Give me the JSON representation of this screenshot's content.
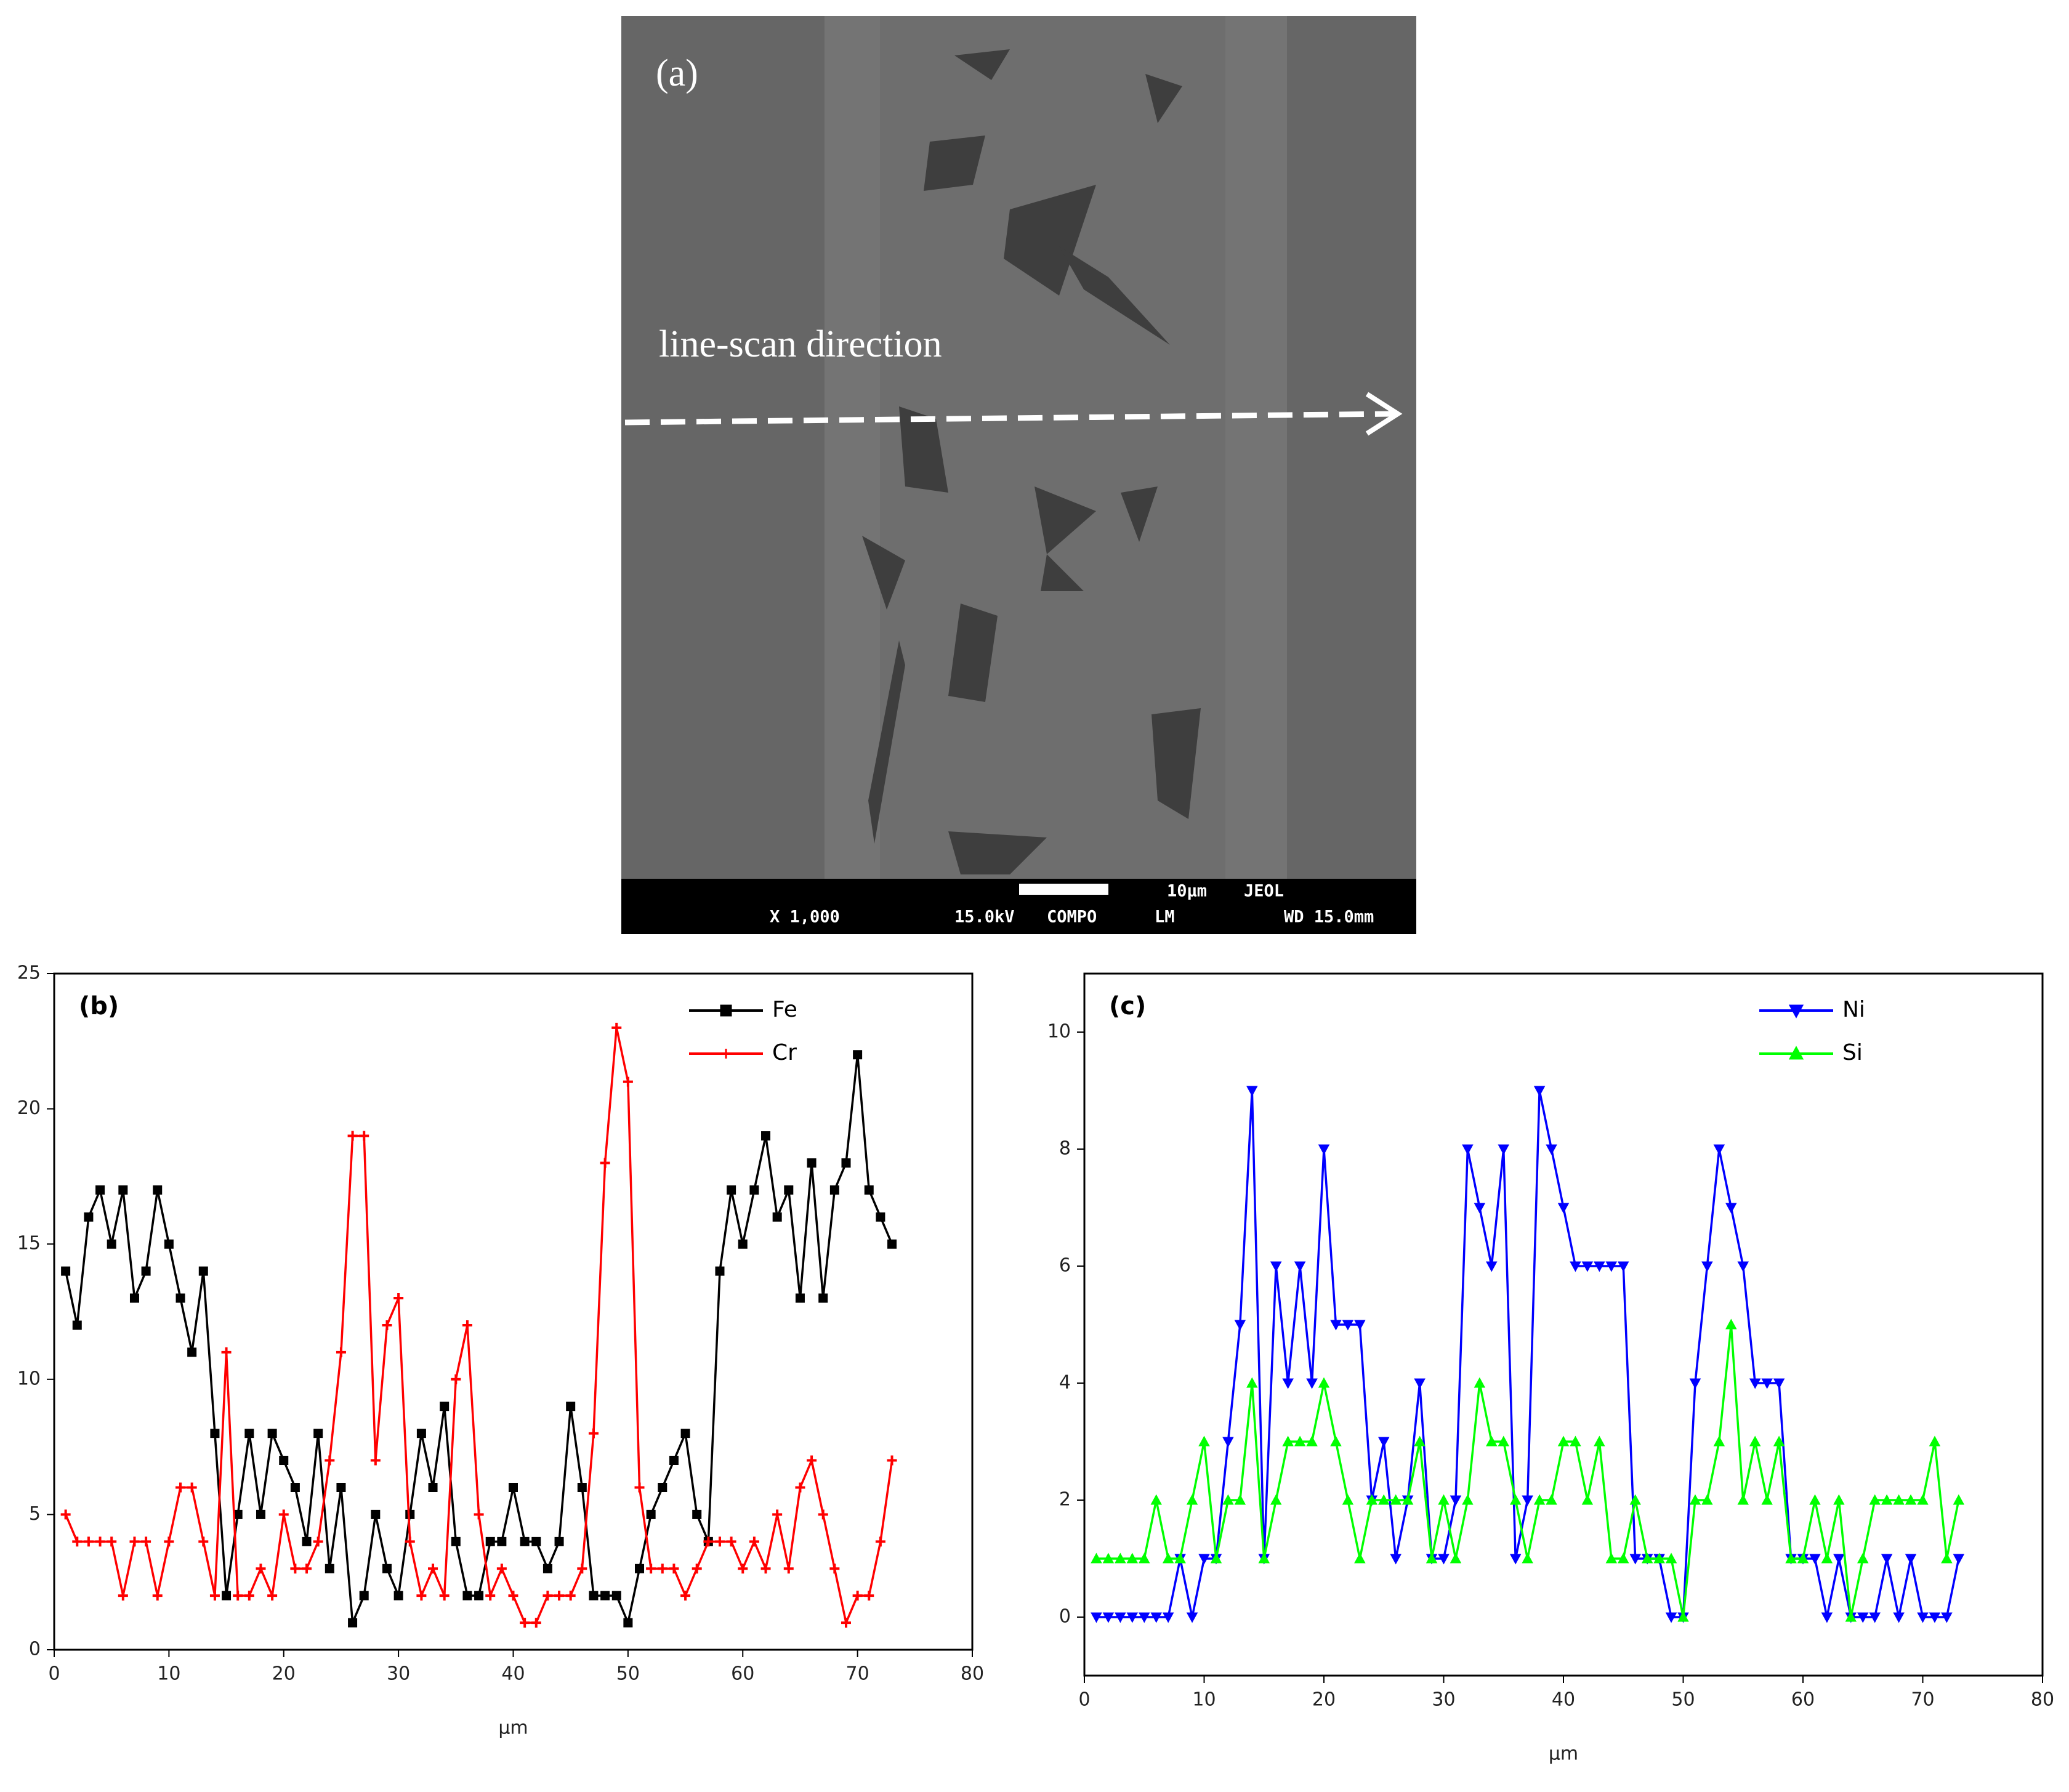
{
  "image": {
    "panel_label": "(a)",
    "annotation": "line-scan direction",
    "scale_bar": "10µm",
    "brand": "JEOL",
    "magnification": "X 1,000",
    "voltage": "15.0kV",
    "mode": "COMPO",
    "detector": "LM",
    "working_distance": "WD 15.0mm"
  },
  "chart_data": [
    {
      "type": "line",
      "panel_label": "(b)",
      "x_label": "µm",
      "xlim": [
        0,
        80
      ],
      "xticks": [
        0,
        10,
        20,
        30,
        40,
        50,
        60,
        70,
        80
      ],
      "ylim": [
        0,
        25
      ],
      "yticks": [
        0,
        5,
        10,
        15,
        20,
        25
      ],
      "legend": "upper right",
      "x": [
        1,
        2,
        3,
        4,
        5,
        6,
        7,
        8,
        9,
        10,
        11,
        12,
        13,
        14,
        15,
        16,
        17,
        18,
        19,
        20,
        21,
        22,
        23,
        24,
        25,
        26,
        27,
        28,
        29,
        30,
        31,
        32,
        33,
        34,
        35,
        36,
        37,
        38,
        39,
        40,
        41,
        42,
        43,
        44,
        45,
        46,
        47,
        48,
        49,
        50,
        51,
        52,
        53,
        54,
        55,
        56,
        57,
        58,
        59,
        60,
        61,
        62,
        63,
        64,
        65,
        66,
        67,
        68,
        69,
        70,
        71,
        72,
        73
      ],
      "series": [
        {
          "name": "Fe",
          "color": "#000000",
          "marker": "square",
          "values": [
            14,
            12,
            16,
            17,
            15,
            17,
            13,
            14,
            17,
            15,
            13,
            11,
            14,
            8,
            2,
            5,
            8,
            5,
            8,
            7,
            6,
            4,
            8,
            3,
            6,
            1,
            2,
            5,
            3,
            2,
            5,
            8,
            6,
            9,
            4,
            2,
            2,
            4,
            4,
            6,
            4,
            4,
            3,
            4,
            9,
            6,
            2,
            2,
            2,
            1,
            3,
            5,
            6,
            7,
            8,
            5,
            4,
            14,
            17,
            15,
            17,
            19,
            16,
            17,
            13,
            18,
            13,
            17,
            18,
            22,
            17,
            16,
            15
          ]
        },
        {
          "name": "Cr",
          "color": "#ff0000",
          "marker": "plus",
          "values": [
            5,
            4,
            4,
            4,
            4,
            2,
            4,
            4,
            2,
            4,
            6,
            6,
            4,
            2,
            11,
            2,
            2,
            3,
            2,
            5,
            3,
            3,
            4,
            7,
            11,
            19,
            19,
            7,
            12,
            13,
            4,
            2,
            3,
            2,
            10,
            12,
            5,
            2,
            3,
            2,
            1,
            1,
            2,
            2,
            2,
            3,
            8,
            18,
            23,
            21,
            6,
            3,
            3,
            3,
            2,
            3,
            4,
            4,
            4,
            3,
            4,
            3,
            5,
            3,
            6,
            7,
            5,
            3,
            1,
            2,
            2,
            4,
            7
          ]
        }
      ]
    },
    {
      "type": "line",
      "panel_label": "(c)",
      "x_label": "µm",
      "xlim": [
        0,
        80
      ],
      "xticks": [
        0,
        10,
        20,
        30,
        40,
        50,
        60,
        70,
        80
      ],
      "ylim": [
        -1,
        11
      ],
      "yticks": [
        0,
        2,
        4,
        6,
        8,
        10
      ],
      "legend": "upper right",
      "x": [
        1,
        2,
        3,
        4,
        5,
        6,
        7,
        8,
        9,
        10,
        11,
        12,
        13,
        14,
        15,
        16,
        17,
        18,
        19,
        20,
        21,
        22,
        23,
        24,
        25,
        26,
        27,
        28,
        29,
        30,
        31,
        32,
        33,
        34,
        35,
        36,
        37,
        38,
        39,
        40,
        41,
        42,
        43,
        44,
        45,
        46,
        47,
        48,
        49,
        50,
        51,
        52,
        53,
        54,
        55,
        56,
        57,
        58,
        59,
        60,
        61,
        62,
        63,
        64,
        65,
        66,
        67,
        68,
        69,
        70,
        71,
        72,
        73
      ],
      "series": [
        {
          "name": "Ni",
          "color": "#0000ff",
          "marker": "triangle-down",
          "values": [
            0,
            0,
            0,
            0,
            0,
            0,
            0,
            1,
            0,
            1,
            1,
            3,
            5,
            9,
            1,
            6,
            4,
            6,
            4,
            8,
            5,
            5,
            5,
            2,
            3,
            1,
            2,
            4,
            1,
            1,
            2,
            8,
            7,
            6,
            8,
            1,
            2,
            9,
            8,
            7,
            6,
            6,
            6,
            6,
            6,
            1,
            1,
            1,
            0,
            0,
            4,
            6,
            8,
            7,
            6,
            4,
            4,
            4,
            1,
            1,
            1,
            0,
            1,
            0,
            0,
            0,
            1,
            0,
            1,
            0,
            0,
            0,
            1
          ]
        },
        {
          "name": "Si",
          "color": "#00ff00",
          "marker": "triangle-up",
          "values": [
            1,
            1,
            1,
            1,
            1,
            2,
            1,
            1,
            2,
            3,
            1,
            2,
            2,
            4,
            1,
            2,
            3,
            3,
            3,
            4,
            3,
            2,
            1,
            2,
            2,
            2,
            2,
            3,
            1,
            2,
            1,
            2,
            4,
            3,
            3,
            2,
            1,
            2,
            2,
            3,
            3,
            2,
            3,
            1,
            1,
            2,
            1,
            1,
            1,
            0,
            2,
            2,
            3,
            5,
            2,
            3,
            2,
            3,
            1,
            1,
            2,
            1,
            2,
            0,
            1,
            2,
            2,
            2,
            2,
            2,
            3,
            1,
            2
          ]
        }
      ]
    }
  ]
}
